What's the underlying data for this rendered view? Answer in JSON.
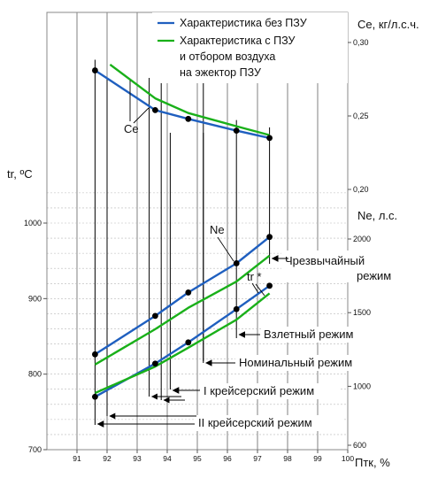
{
  "chart_data": {
    "type": "line",
    "x": {
      "label": "Птк, %",
      "range": [
        90,
        100
      ],
      "ticks": [
        "91",
        "92",
        "93",
        "94",
        "95",
        "96",
        "97",
        "98",
        "99",
        "100"
      ],
      "grid": true
    },
    "left_axis": {
      "label": "tr, ºC",
      "range": [
        700,
        1050
      ],
      "ticks": [
        "700",
        "800",
        "900",
        "1000"
      ]
    },
    "right_axis_ce": {
      "label": "Се, кг/л.с.ч.",
      "range": [
        0.15,
        0.31
      ],
      "ticks": [
        "0,20",
        "0,25",
        "0,30"
      ]
    },
    "right_axis_ne": {
      "label": "Ne, л.с.",
      "range": [
        600,
        2200
      ],
      "ticks": [
        "600",
        "1000",
        "1500",
        "2000"
      ]
    },
    "legend": {
      "position": "top-right",
      "items": [
        {
          "text": "Характеристика без ПЗУ",
          "color": "#1f5fbf"
        },
        {
          "text": "Характеристика с ПЗУ",
          "color": "#19b019"
        },
        {
          "text": "и отбором воздуха",
          "color": ""
        },
        {
          "text": "на эжектор ПЗУ",
          "color": ""
        }
      ]
    },
    "series": [
      {
        "color": "#1f5fbf",
        "axis": "ce",
        "x": [
          91.6,
          93.6,
          94.7,
          96.3,
          97.4
        ],
        "y": [
          0.281,
          0.254,
          0.248,
          0.24,
          0.235
        ],
        "markers": true
      },
      {
        "color": "#19b019",
        "axis": "ce",
        "x": [
          92.1,
          93.6,
          94.7,
          96.3,
          97.4
        ],
        "y": [
          0.285,
          0.262,
          0.252,
          0.243,
          0.237
        ],
        "markers": false
      },
      {
        "color": "#1f5fbf",
        "axis": "ne",
        "x": [
          91.6,
          93.6,
          94.7,
          96.3,
          97.4
        ],
        "y": [
          1217,
          1478,
          1637,
          1835,
          2014
        ],
        "markers": true
      },
      {
        "color": "#19b019",
        "axis": "ne",
        "x": [
          91.6,
          93.6,
          94.7,
          96.3,
          97.4
        ],
        "y": [
          1148,
          1388,
          1533,
          1711,
          1887
        ],
        "markers": false
      },
      {
        "color": "#1f5fbf",
        "axis": "tr",
        "x": [
          91.6,
          93.6,
          94.7,
          96.3,
          97.4
        ],
        "y": [
          770,
          814,
          842,
          886,
          917
        ],
        "markers": true
      },
      {
        "color": "#19b019",
        "axis": "tr",
        "x": [
          91.6,
          93.6,
          94.7,
          96.3,
          97.4
        ],
        "y": [
          775,
          810,
          835,
          872,
          907
        ],
        "markers": false
      }
    ],
    "curve_labels": [
      {
        "text": "Се"
      },
      {
        "text": "Ne"
      },
      {
        "text": "tr *"
      }
    ],
    "regimes": [
      {
        "text": "Чрезвычайный",
        "text2": "режим",
        "x": 97.4
      },
      {
        "text": "Взлетный режим",
        "x": 96.3
      },
      {
        "text": "Номинальный режим",
        "x": 95.2
      },
      {
        "text": "I крейсерский режим",
        "x": 94.1
      },
      {
        "text": "II крейсерский режим",
        "x": 91.6
      }
    ],
    "regime_guides": [
      92.0,
      93.4,
      93.8,
      95.2
    ]
  }
}
